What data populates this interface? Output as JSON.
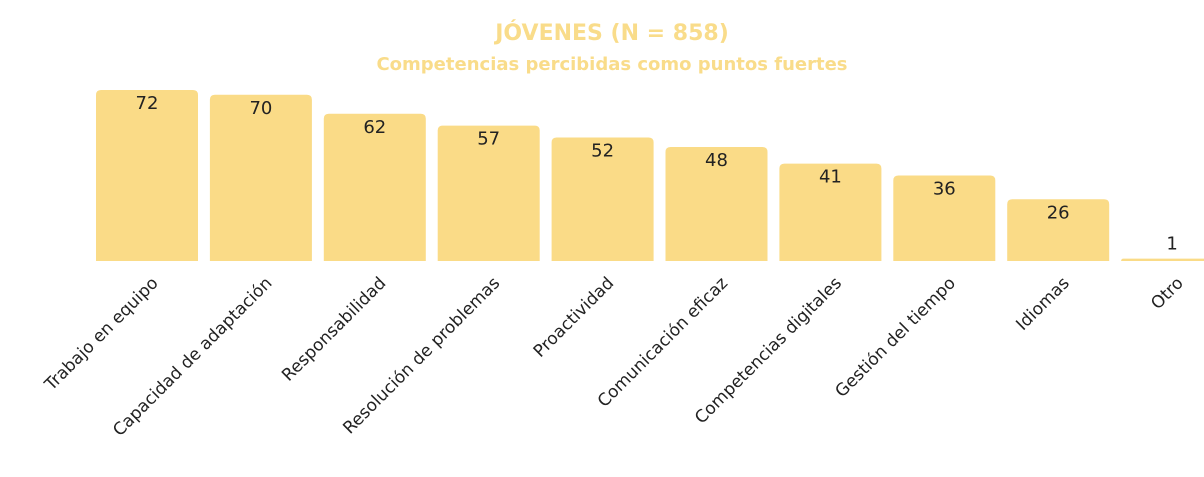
{
  "chart_data": {
    "type": "bar",
    "title": "JÓVENES (N = 858)",
    "subtitle": "Competencias percibidas como puntos fuertes",
    "categories": [
      "Trabajo en equipo",
      "Capacidad de adaptación",
      "Responsabilidad",
      "Resolución de problemas",
      "Proactividad",
      "Comunicación eficaz",
      "Competencias digitales",
      "Gestión del tiempo",
      "Idiomas",
      "Otro"
    ],
    "values": [
      72,
      70,
      62,
      57,
      52,
      48,
      41,
      36,
      26,
      1
    ],
    "color": "#fadb87"
  }
}
